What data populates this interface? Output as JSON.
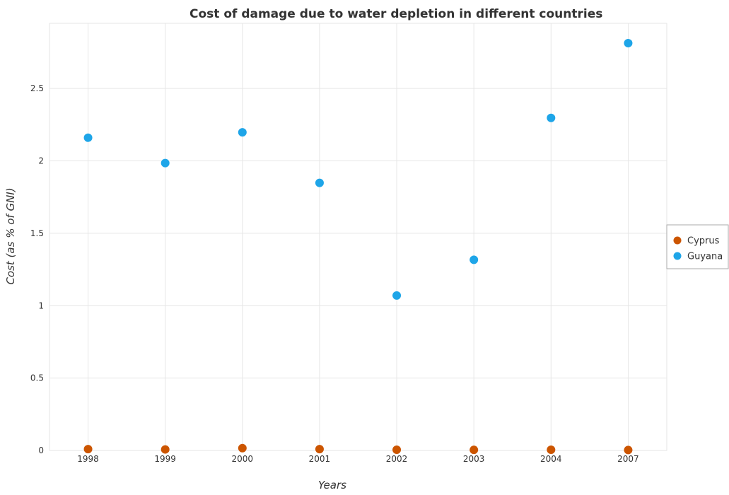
{
  "chart_data": {
    "type": "scatter",
    "title": "Cost of damage due to water depletion in different countries",
    "xlabel": "Years",
    "ylabel": "Cost (as % of GNI)",
    "categories": [
      "1998",
      "1999",
      "2000",
      "2001",
      "2002",
      "2003",
      "2004",
      "2007"
    ],
    "y_ticks": [
      "0",
      "0.5",
      "1",
      "1.5",
      "2",
      "2.5"
    ],
    "ylim": [
      0,
      2.95
    ],
    "grid": true,
    "legend_position": "right",
    "series": [
      {
        "name": "Cyprus",
        "color": "#cc5500",
        "values": [
          0.009,
          0.007,
          0.016,
          0.009,
          0.005,
          0.004,
          0.005,
          0.003
        ]
      },
      {
        "name": "Guyana",
        "color": "#1ea5e8",
        "values": [
          2.16,
          1.985,
          2.197,
          1.848,
          1.07,
          1.317,
          2.297,
          2.813
        ]
      }
    ]
  }
}
